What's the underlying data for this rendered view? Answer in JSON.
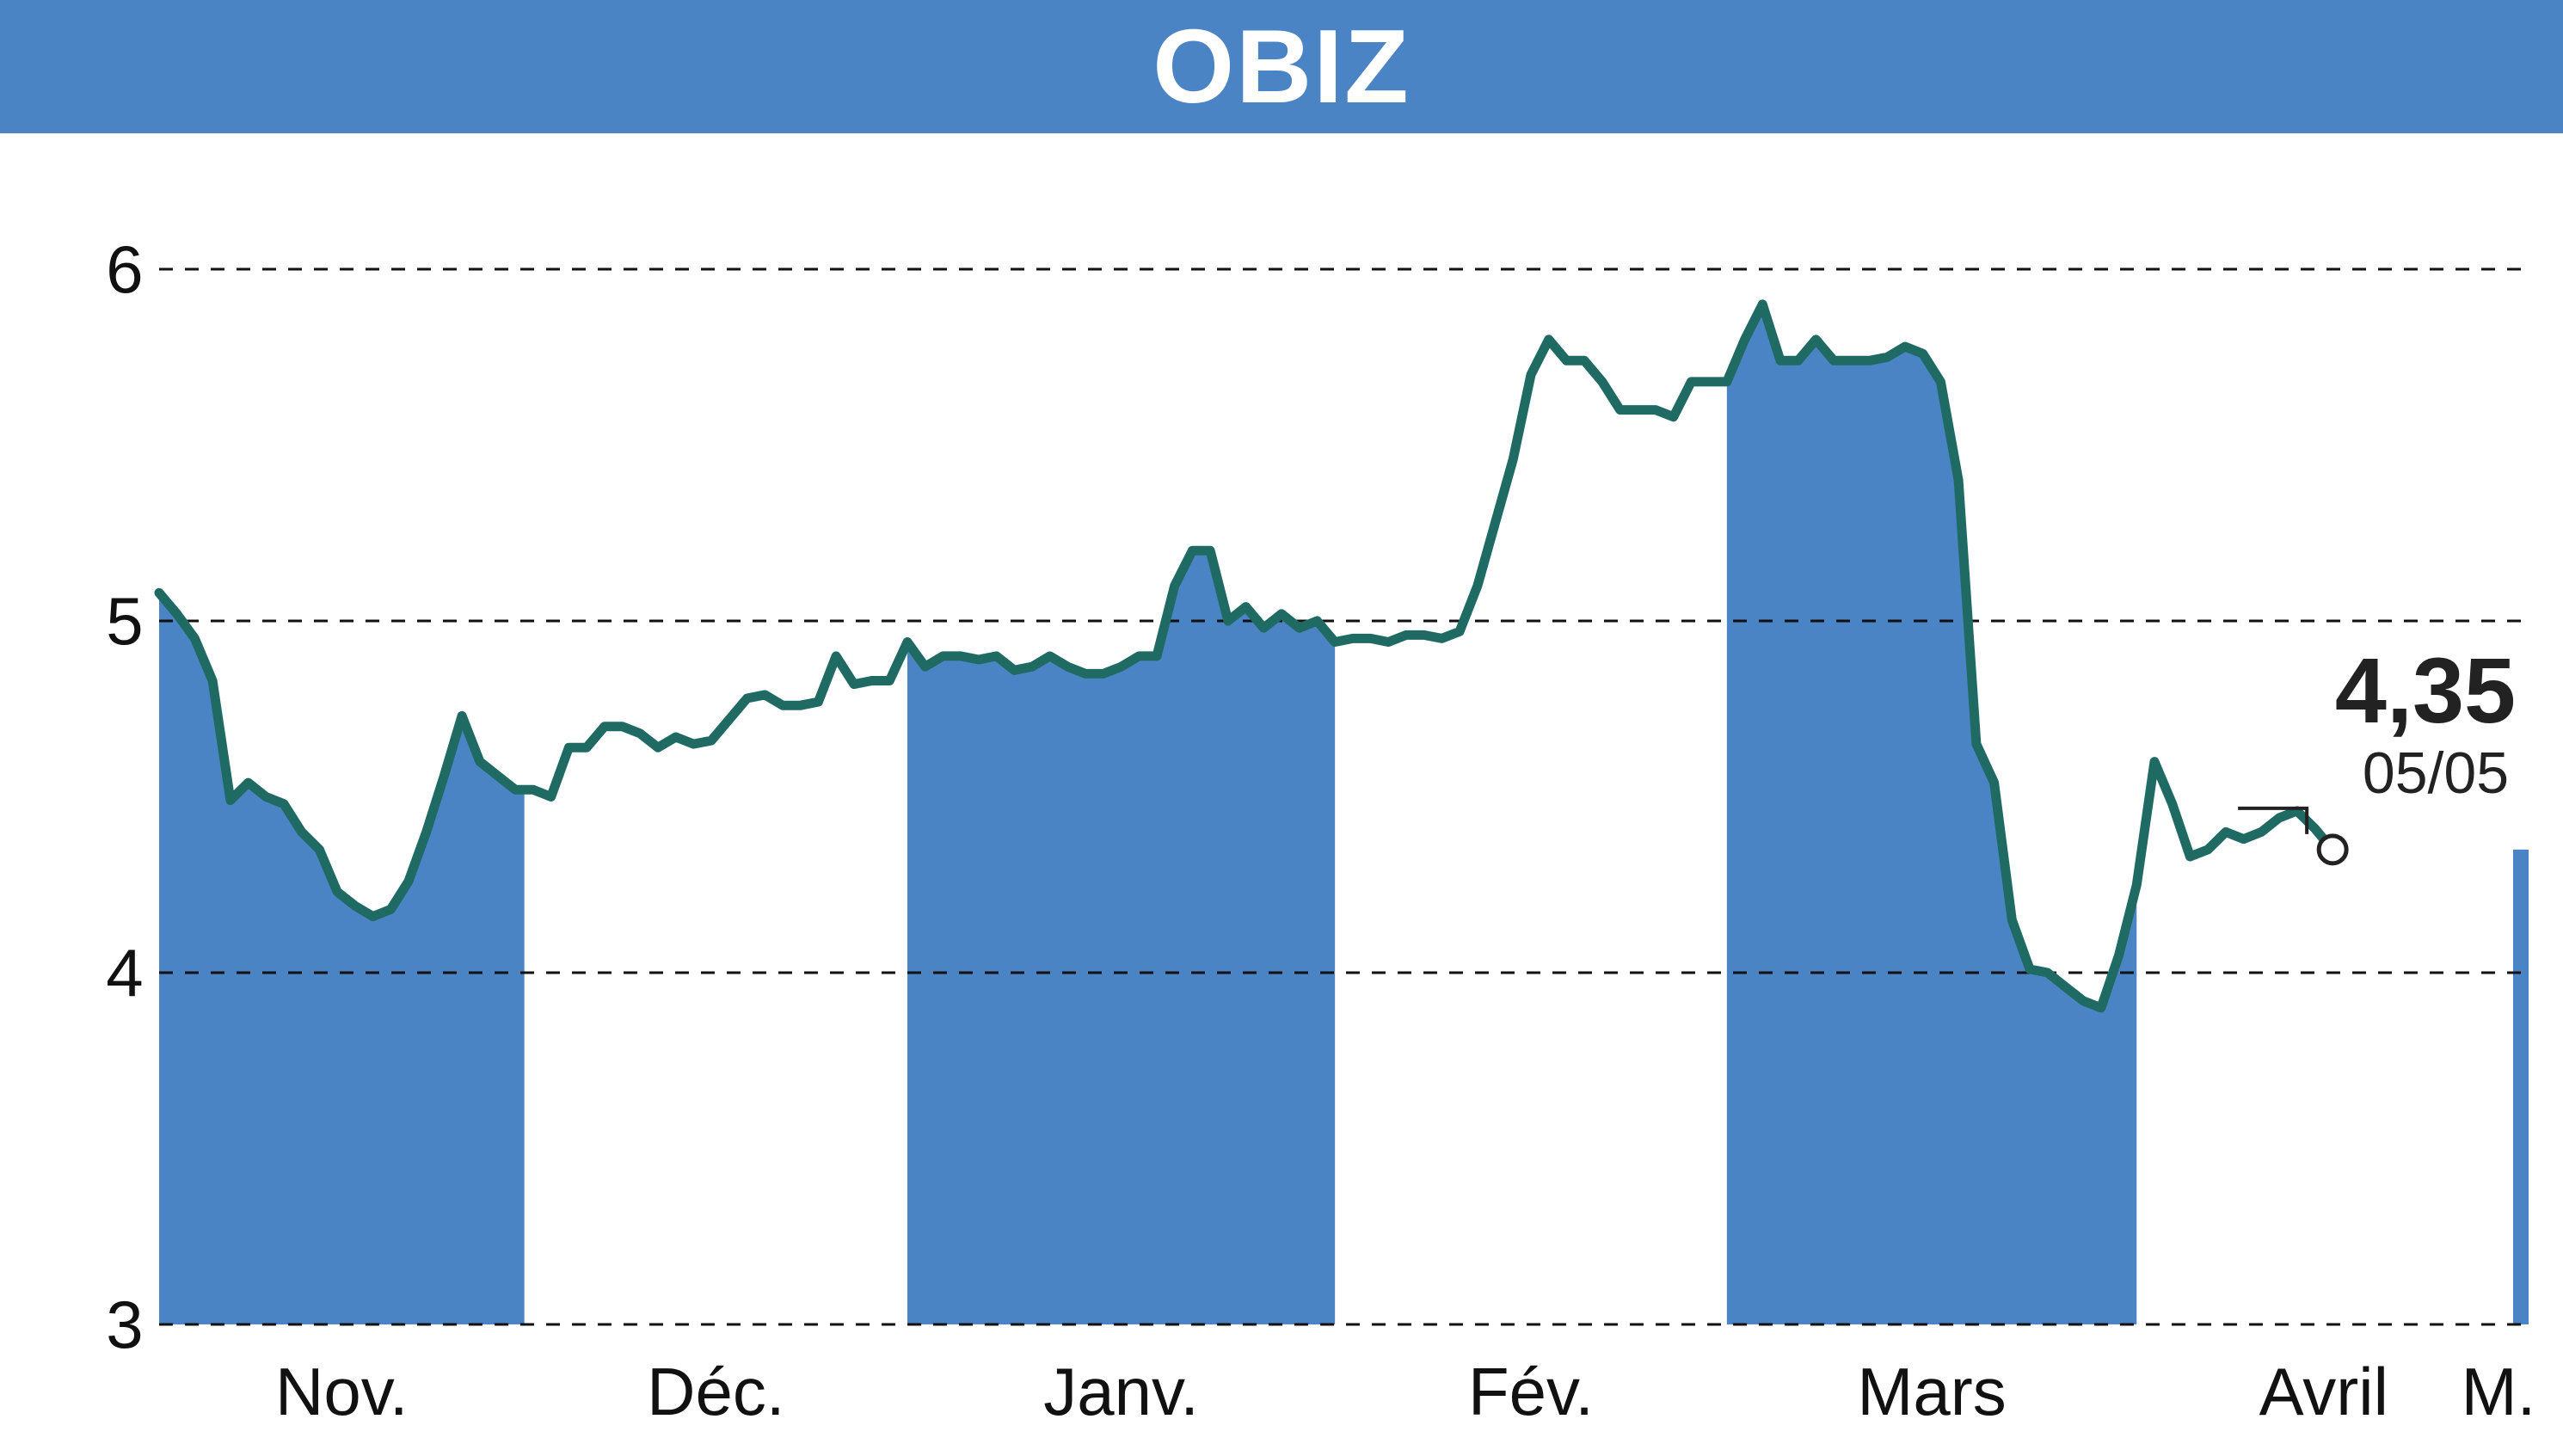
{
  "header": {
    "title": "OBIZ"
  },
  "colors": {
    "header": "#4a84c4",
    "band": "#4a84c4",
    "line": "#1f6b63",
    "grid": "#111111"
  },
  "chart_data": {
    "type": "line",
    "title": "OBIZ",
    "xlabel": "",
    "ylabel": "",
    "ylim": [
      3,
      6.2
    ],
    "yticks": [
      3,
      4,
      5,
      6
    ],
    "ytick_labels": [
      "3",
      "4",
      "5",
      "6"
    ],
    "grid": true,
    "months": [
      "Nov.",
      "Déc.",
      "Janv.",
      "Fév.",
      "Mars",
      "Avril",
      "M."
    ],
    "x_range": [
      0,
      133
    ],
    "month_bands": [
      {
        "month": "Nov.",
        "start": 0,
        "end": 20.5,
        "shaded": true
      },
      {
        "month": "Déc.",
        "start": 20.5,
        "end": 42,
        "shaded": false
      },
      {
        "month": "Janv.",
        "start": 42,
        "end": 66,
        "shaded": true
      },
      {
        "month": "Fév.",
        "start": 66,
        "end": 88,
        "shaded": false
      },
      {
        "month": "Mars",
        "start": 88,
        "end": 111,
        "shaded": true
      },
      {
        "month": "Avril",
        "start": 111,
        "end": 132,
        "shaded": false
      },
      {
        "month": "M.",
        "start": 132,
        "end": 133,
        "shaded": true
      }
    ],
    "series": [
      {
        "values": [
          5.08,
          5.02,
          4.95,
          4.83,
          4.49,
          4.54,
          4.5,
          4.48,
          4.4,
          4.35,
          4.23,
          4.19,
          4.16,
          4.18,
          4.26,
          4.4,
          4.56,
          4.73,
          4.6,
          4.56,
          4.52,
          4.52,
          4.5,
          4.64,
          4.64,
          4.7,
          4.7,
          4.68,
          4.64,
          4.67,
          4.65,
          4.66,
          4.72,
          4.78,
          4.79,
          4.76,
          4.76,
          4.77,
          4.9,
          4.82,
          4.83,
          4.83,
          4.94,
          4.87,
          4.9,
          4.9,
          4.89,
          4.9,
          4.86,
          4.87,
          4.9,
          4.87,
          4.85,
          4.85,
          4.87,
          4.9,
          4.9,
          5.1,
          5.2,
          5.2,
          5.0,
          5.04,
          4.98,
          5.02,
          4.98,
          5.0,
          4.94,
          4.95,
          4.95,
          4.94,
          4.96,
          4.96,
          4.95,
          4.97,
          5.1,
          5.28,
          5.46,
          5.7,
          5.8,
          5.74,
          5.74,
          5.68,
          5.6,
          5.6,
          5.6,
          5.58,
          5.68,
          5.68,
          5.68,
          5.8,
          5.9,
          5.74,
          5.74,
          5.8,
          5.74,
          5.74,
          5.74,
          5.75,
          5.78,
          5.76,
          5.68,
          5.4,
          4.65,
          4.54,
          4.15,
          4.01,
          4.0,
          3.96,
          3.92,
          3.9,
          4.05,
          4.25,
          4.6,
          4.48,
          4.33,
          4.35,
          4.4,
          4.38,
          4.4,
          4.44,
          4.46,
          4.41,
          4.35
        ]
      }
    ],
    "last_value": "4,35",
    "last_date": "05/05"
  }
}
